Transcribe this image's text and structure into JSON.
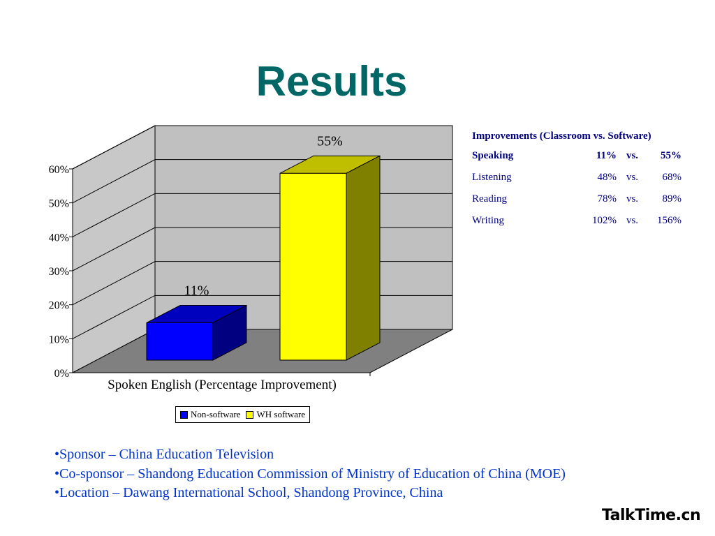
{
  "slide": {
    "title": "Results"
  },
  "chart_data": {
    "type": "bar",
    "subtype": "3d-column",
    "categories": [
      "Spoken English (Percentage Improvement)"
    ],
    "xlabel": "Spoken English (Percentage Improvement)",
    "ylabel": "",
    "ylim": [
      0,
      0.6
    ],
    "yticks": [
      "0%",
      "10%",
      "20%",
      "30%",
      "40%",
      "50%",
      "60%"
    ],
    "grid": true,
    "legend_position": "bottom",
    "series": [
      {
        "name": "Non-software",
        "values": [
          0.11
        ],
        "label": "11%",
        "color": "#0000ff"
      },
      {
        "name": "WH software",
        "values": [
          0.55
        ],
        "label": "55%",
        "color": "#ffff00"
      }
    ]
  },
  "table": {
    "header": "Improvements (Classroom vs. Software)",
    "rows": [
      {
        "label": "Speaking",
        "v1": "11%",
        "vs": "vs.",
        "v2": "55%",
        "bold": true
      },
      {
        "label": "Listening",
        "v1": "48%",
        "vs": "vs.",
        "v2": "68%",
        "bold": false
      },
      {
        "label": "Reading",
        "v1": "78%",
        "vs": "vs.",
        "v2": "89%",
        "bold": false
      },
      {
        "label": "Writing",
        "v1": "102%",
        "vs": "vs.",
        "v2": "156%",
        "bold": false
      }
    ]
  },
  "bullets": [
    "•Sponsor – China Education Television",
    "•Co-sponsor – Shandong Education Commission of Ministry of Education of China (MOE)",
    "•Location – Dawang International School, Shandong Province, China"
  ],
  "logo": {
    "text": "TalkTime.cn"
  },
  "colors": {
    "title": "#006666",
    "table_text": "#000080",
    "bullet_text": "#0033cc",
    "chart_back_wall": "#c0c0c0",
    "chart_floor": "#808080"
  }
}
